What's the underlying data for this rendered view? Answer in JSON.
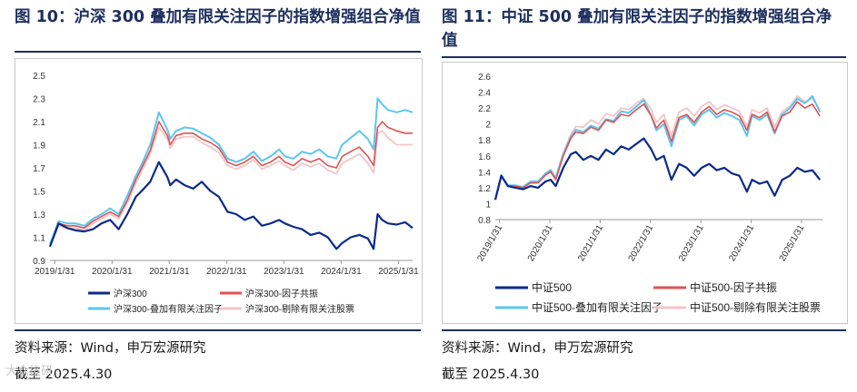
{
  "figures": [
    {
      "title": "图 10：沪深 300 叠加有限关注因子的指数增强组合净值",
      "source": "资料来源：Wind，申万宏源研究",
      "date_note": "截至 2025.4.30"
    },
    {
      "title_line1": "图 11：中证 500 叠加有限关注因子的指数增强组合净",
      "title_line2": "值",
      "source": "资料来源：Wind，申万宏源研究",
      "date_note": "截至 2025.4.30"
    }
  ],
  "watermark": "大众投研",
  "chart_data": [
    {
      "type": "line",
      "title": "沪深 300 叠加有限关注因子的指数增强组合净值",
      "x_ticks": [
        "2019/1/31",
        "2020/1/31",
        "2021/1/31",
        "2022/1/31",
        "2023/1/31",
        "2024/1/31",
        "2025/1/31"
      ],
      "y_ticks": [
        "0.9",
        "1.1",
        "1.3",
        "1.5",
        "1.7",
        "1.9",
        "2.1",
        "2.3",
        "2.5"
      ],
      "ylim": [
        0.9,
        2.5
      ],
      "xlim": [
        2019.0,
        2025.33
      ],
      "legend": [
        "沪深300",
        "沪深300-因子共振",
        "沪深300-叠加有限关注因子",
        "沪深300-剔除有限关注股票"
      ],
      "x": [
        2019.0,
        2019.15,
        2019.3,
        2019.45,
        2019.6,
        2019.75,
        2019.9,
        2020.05,
        2020.2,
        2020.35,
        2020.5,
        2020.6,
        2020.75,
        2020.9,
        2021.05,
        2021.1,
        2021.2,
        2021.35,
        2021.5,
        2021.65,
        2021.8,
        2021.95,
        2022.1,
        2022.25,
        2022.4,
        2022.55,
        2022.7,
        2022.85,
        2023.0,
        2023.1,
        2023.25,
        2023.4,
        2023.55,
        2023.7,
        2023.85,
        2024.0,
        2024.1,
        2024.25,
        2024.4,
        2024.55,
        2024.65,
        2024.72,
        2024.8,
        2024.9,
        2025.05,
        2025.2,
        2025.33
      ],
      "series": [
        {
          "name": "沪深300",
          "color": "#0b2a8a",
          "width": 2.2,
          "values": [
            1.02,
            1.22,
            1.18,
            1.16,
            1.15,
            1.17,
            1.22,
            1.25,
            1.17,
            1.3,
            1.45,
            1.5,
            1.58,
            1.75,
            1.62,
            1.55,
            1.6,
            1.55,
            1.52,
            1.58,
            1.5,
            1.45,
            1.32,
            1.3,
            1.25,
            1.28,
            1.2,
            1.22,
            1.25,
            1.22,
            1.19,
            1.17,
            1.12,
            1.14,
            1.1,
            1.0,
            1.05,
            1.1,
            1.12,
            1.09,
            1.0,
            1.3,
            1.25,
            1.22,
            1.21,
            1.23,
            1.18
          ]
        },
        {
          "name": "沪深300-因子共振",
          "color": "#e05252",
          "width": 1.6,
          "values": [
            1.02,
            1.22,
            1.2,
            1.2,
            1.18,
            1.24,
            1.28,
            1.32,
            1.28,
            1.42,
            1.6,
            1.7,
            1.85,
            2.1,
            1.98,
            1.9,
            1.98,
            2.0,
            2.0,
            1.95,
            1.92,
            1.87,
            1.75,
            1.72,
            1.75,
            1.8,
            1.72,
            1.75,
            1.8,
            1.75,
            1.72,
            1.78,
            1.75,
            1.78,
            1.72,
            1.7,
            1.8,
            1.84,
            1.88,
            1.8,
            1.72,
            2.05,
            2.1,
            2.05,
            2.02,
            2.0,
            2.0
          ]
        },
        {
          "name": "沪深300-叠加有限关注因子",
          "color": "#5bc6f0",
          "width": 2.0,
          "values": [
            1.04,
            1.24,
            1.22,
            1.22,
            1.2,
            1.26,
            1.3,
            1.35,
            1.3,
            1.46,
            1.63,
            1.73,
            1.9,
            2.18,
            2.03,
            1.95,
            2.02,
            2.05,
            2.04,
            2.0,
            1.96,
            1.9,
            1.78,
            1.75,
            1.78,
            1.84,
            1.76,
            1.8,
            1.86,
            1.8,
            1.78,
            1.84,
            1.82,
            1.86,
            1.8,
            1.78,
            1.9,
            1.96,
            2.02,
            1.95,
            1.86,
            2.3,
            2.25,
            2.2,
            2.18,
            2.2,
            2.18
          ]
        },
        {
          "name": "沪深300-剔除有限关注股票",
          "color": "#f3c5c8",
          "width": 1.8,
          "values": [
            1.02,
            1.2,
            1.18,
            1.18,
            1.16,
            1.22,
            1.26,
            1.3,
            1.26,
            1.4,
            1.57,
            1.67,
            1.82,
            2.05,
            1.95,
            1.87,
            1.95,
            1.97,
            1.97,
            1.92,
            1.88,
            1.83,
            1.72,
            1.69,
            1.72,
            1.77,
            1.69,
            1.72,
            1.76,
            1.72,
            1.68,
            1.74,
            1.71,
            1.74,
            1.68,
            1.65,
            1.74,
            1.78,
            1.82,
            1.74,
            1.66,
            2.0,
            2.02,
            1.96,
            1.9,
            1.9,
            1.9
          ]
        }
      ]
    },
    {
      "type": "line",
      "title": "中证 500 叠加有限关注因子的指数增强组合净值",
      "x_ticks": [
        "2019/1/31",
        "2020/1/31",
        "2021/1/31",
        "2022/1/31",
        "2023/1/31",
        "2024/1/31",
        "2025/1/31"
      ],
      "y_ticks": [
        "0.8",
        "1",
        "1.2",
        "1.4",
        "1.6",
        "1.8",
        "2",
        "2.2",
        "2.4",
        "2.6"
      ],
      "ylim": [
        0.8,
        2.6
      ],
      "xlim": [
        2019.0,
        2025.5
      ],
      "legend": [
        "中证500",
        "中证500-因子共振",
        "中证500-叠加有限关注因子",
        "中证500-剔除有限关注股票"
      ],
      "x": [
        2019.0,
        2019.12,
        2019.25,
        2019.4,
        2019.55,
        2019.7,
        2019.85,
        2020.0,
        2020.1,
        2020.2,
        2020.35,
        2020.5,
        2020.6,
        2020.75,
        2020.9,
        2021.05,
        2021.2,
        2021.35,
        2021.5,
        2021.65,
        2021.8,
        2021.95,
        2022.1,
        2022.2,
        2022.35,
        2022.5,
        2022.65,
        2022.8,
        2022.95,
        2023.1,
        2023.25,
        2023.4,
        2023.55,
        2023.7,
        2023.85,
        2024.0,
        2024.1,
        2024.25,
        2024.4,
        2024.55,
        2024.7,
        2024.85,
        2025.0,
        2025.15,
        2025.3,
        2025.45
      ],
      "series": [
        {
          "name": "中证500",
          "color": "#0b2a8a",
          "width": 2.2,
          "values": [
            1.05,
            1.35,
            1.22,
            1.2,
            1.18,
            1.22,
            1.2,
            1.28,
            1.3,
            1.22,
            1.45,
            1.62,
            1.65,
            1.55,
            1.6,
            1.55,
            1.68,
            1.62,
            1.72,
            1.68,
            1.75,
            1.82,
            1.68,
            1.55,
            1.6,
            1.3,
            1.5,
            1.45,
            1.35,
            1.45,
            1.5,
            1.42,
            1.45,
            1.38,
            1.35,
            1.15,
            1.3,
            1.25,
            1.28,
            1.1,
            1.3,
            1.35,
            1.45,
            1.4,
            1.42,
            1.3
          ]
        },
        {
          "name": "中证500-因子共振",
          "color": "#e05252",
          "width": 1.6,
          "values": [
            1.05,
            1.35,
            1.22,
            1.22,
            1.2,
            1.26,
            1.26,
            1.36,
            1.4,
            1.3,
            1.6,
            1.82,
            1.9,
            1.88,
            1.96,
            1.92,
            2.05,
            2.02,
            2.12,
            2.1,
            2.18,
            2.25,
            2.1,
            1.95,
            2.05,
            1.78,
            2.08,
            2.12,
            2.02,
            2.15,
            2.22,
            2.12,
            2.18,
            2.15,
            2.1,
            1.92,
            2.12,
            2.08,
            2.15,
            1.9,
            2.1,
            2.15,
            2.28,
            2.2,
            2.25,
            2.1
          ]
        },
        {
          "name": "中证500-叠加有限关注因子",
          "color": "#5bc6f0",
          "width": 2.0,
          "values": [
            1.06,
            1.36,
            1.23,
            1.23,
            1.21,
            1.28,
            1.28,
            1.38,
            1.42,
            1.32,
            1.62,
            1.84,
            1.93,
            1.9,
            1.98,
            1.94,
            2.06,
            2.04,
            2.16,
            2.14,
            2.22,
            2.3,
            2.1,
            1.92,
            2.0,
            1.72,
            2.05,
            2.1,
            1.98,
            2.12,
            2.18,
            2.08,
            2.14,
            2.1,
            2.05,
            1.85,
            2.1,
            2.05,
            2.12,
            1.88,
            2.12,
            2.2,
            2.32,
            2.26,
            2.35,
            2.15
          ]
        },
        {
          "name": "中证500-剔除有限关注股票",
          "color": "#f3c5c8",
          "width": 1.8,
          "values": [
            1.04,
            1.34,
            1.22,
            1.22,
            1.2,
            1.27,
            1.28,
            1.38,
            1.43,
            1.33,
            1.64,
            1.87,
            1.97,
            1.96,
            2.05,
            2.0,
            2.13,
            2.1,
            2.2,
            2.18,
            2.26,
            2.32,
            2.18,
            2.02,
            2.12,
            1.85,
            2.15,
            2.2,
            2.1,
            2.22,
            2.28,
            2.18,
            2.24,
            2.2,
            2.16,
            1.96,
            2.18,
            2.14,
            2.2,
            1.96,
            2.16,
            2.22,
            2.35,
            2.28,
            2.32,
            2.18
          ]
        }
      ]
    }
  ]
}
